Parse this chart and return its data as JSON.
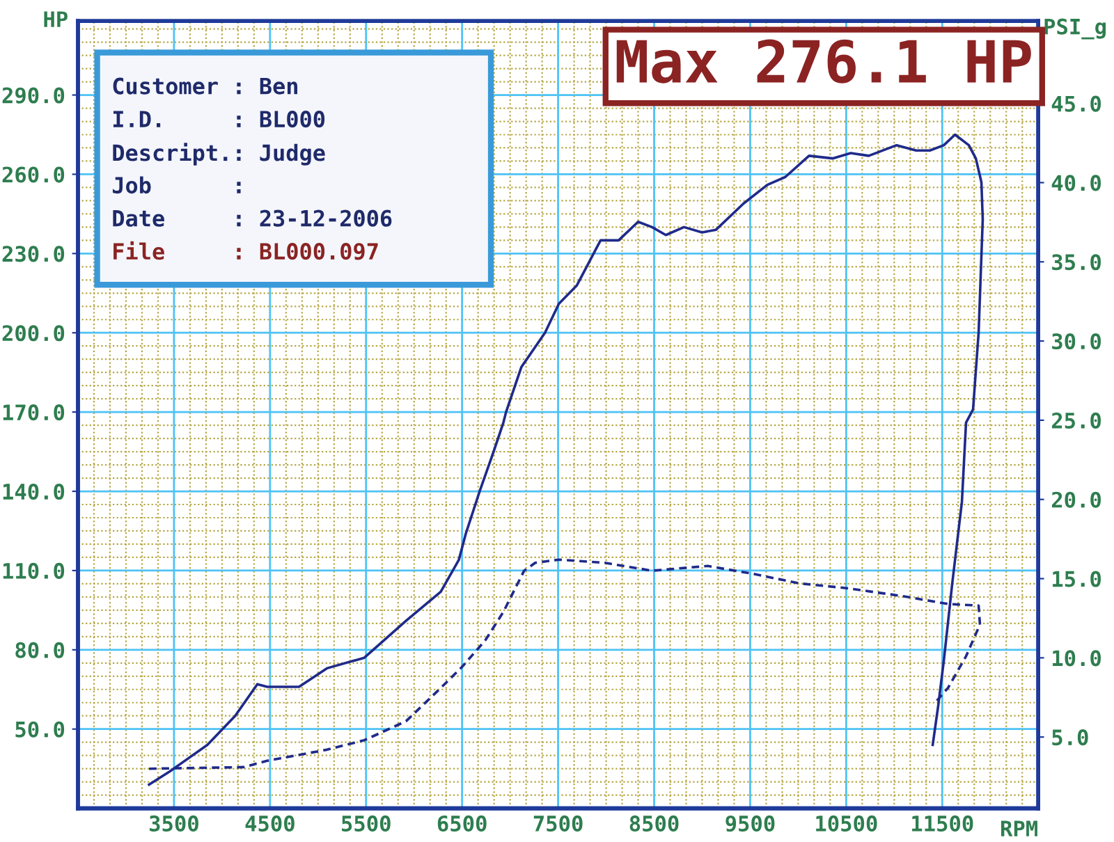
{
  "chart_data": {
    "type": "line",
    "annotations": [
      "Max 276.1 HP",
      "Customer : Ben",
      "I.D.     : BL000",
      "Descript.: Judge",
      "Job      :",
      "Date     : 23-12-2006",
      "File     : BL000.097"
    ],
    "xlabel": "RPM",
    "ylabel": "HP",
    "y2label": "PSI_g",
    "xlim": [
      2500,
      12500
    ],
    "xticks": [
      3500,
      4500,
      5500,
      6500,
      7500,
      8500,
      9500,
      10500,
      11500
    ],
    "ylim": [
      20,
      318
    ],
    "yticks": [
      {
        "value": 50,
        "label": "50.0"
      },
      {
        "value": 80,
        "label": "80.0"
      },
      {
        "value": 110,
        "label": "110.0"
      },
      {
        "value": 140,
        "label": "140.0"
      },
      {
        "value": 170,
        "label": "170.0"
      },
      {
        "value": 200,
        "label": "200.0"
      },
      {
        "value": 230,
        "label": "230.0"
      },
      {
        "value": 260,
        "label": "260.0"
      },
      {
        "value": 290,
        "label": "290.0"
      }
    ],
    "y2lim": [
      0.5,
      50.2
    ],
    "y2ticks": [
      {
        "value": 5,
        "label": "5.0"
      },
      {
        "value": 10,
        "label": "10.0"
      },
      {
        "value": 15,
        "label": "15.0"
      },
      {
        "value": 20,
        "label": "20.0"
      },
      {
        "value": 25,
        "label": "25.0"
      },
      {
        "value": 30,
        "label": "30.0"
      },
      {
        "value": 35,
        "label": "35.0"
      },
      {
        "value": 40,
        "label": "40.0"
      },
      {
        "value": 45,
        "label": "45.0"
      }
    ],
    "grid": true,
    "marker": "none",
    "series": [
      {
        "color": "#1f2a8a",
        "line_style": "solid",
        "x": [
          3240,
          3457,
          3847,
          4137,
          4368,
          4470,
          4802,
          5092,
          5482,
          5916,
          6278,
          6466,
          6539,
          6683,
          6828,
          6930,
          6958,
          7117,
          7363,
          7508,
          7696,
          7841,
          7942,
          8130,
          8333,
          8478,
          8622,
          8811,
          8999,
          9144,
          9433,
          9679,
          9867,
          10113,
          10359,
          10547,
          10735,
          11025,
          11228,
          11372,
          11517,
          11633,
          11777,
          11850,
          11908,
          11922,
          11879,
          11821,
          11748,
          11705,
          11604,
          11517,
          11459,
          11401
        ],
        "values": [
          29,
          34,
          44,
          55,
          67,
          66,
          66,
          73,
          77,
          91,
          102,
          114,
          124,
          140,
          155,
          166,
          170,
          187,
          200,
          211,
          218,
          228,
          235,
          235,
          242,
          240,
          237,
          240,
          238,
          239,
          249,
          256,
          259,
          267,
          266,
          268,
          267,
          271,
          269,
          269,
          271,
          275,
          271,
          266,
          257,
          243,
          200,
          171,
          166,
          136,
          105,
          76,
          59,
          44
        ]
      },
      {
        "color": "#1f2a8a",
        "line_style": "dashed",
        "axis": "y2",
        "x": [
          3240,
          4224,
          4470,
          5092,
          5482,
          5916,
          6278,
          6495,
          6741,
          6930,
          7146,
          7262,
          7508,
          7986,
          8478,
          9057,
          9534,
          10012,
          10504,
          11083,
          11560,
          11879,
          11893,
          11748,
          11560,
          11517,
          11415
        ],
        "values": [
          3.0,
          3.1,
          3.5,
          4.2,
          4.8,
          6.0,
          8.1,
          9.4,
          11.1,
          12.9,
          15.5,
          16.0,
          16.2,
          16.0,
          15.5,
          15.8,
          15.3,
          14.7,
          14.4,
          13.9,
          13.4,
          13.3,
          12.1,
          10.1,
          8.1,
          7.8,
          7.1
        ]
      }
    ]
  }
}
